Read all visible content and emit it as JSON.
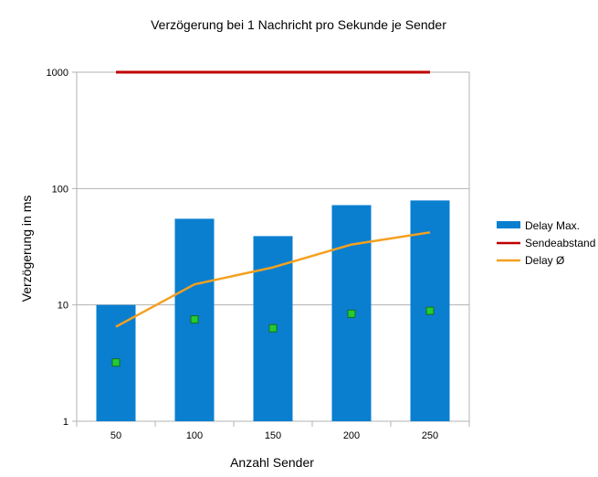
{
  "chart_data": {
    "type": "bar",
    "title": "Verzögerung bei 1 Nachricht pro Sekunde je Sender",
    "xlabel": "Anzahl Sender",
    "ylabel": "Verzögerung in ms",
    "y_scale": "log",
    "ylim": [
      1,
      1000
    ],
    "y_ticks": [
      "1",
      "10",
      "100",
      "1000"
    ],
    "categories": [
      "50",
      "100",
      "150",
      "200",
      "250"
    ],
    "grid": true,
    "legend_position": "right",
    "series": [
      {
        "name": "Delay Max.",
        "kind": "bar",
        "color": "#0a7fd0",
        "values": [
          10,
          55,
          39,
          72,
          79
        ]
      },
      {
        "name": "Sendeabstand",
        "kind": "line",
        "color": "#c00000",
        "values": [
          1000,
          1000,
          1000,
          1000,
          1000
        ]
      },
      {
        "name": "Delay Ø",
        "kind": "line",
        "color": "#f4a020",
        "values": [
          6.5,
          15,
          21,
          33,
          42
        ]
      },
      {
        "name": "",
        "kind": "scatter",
        "color": "#22cc33",
        "values": [
          3.2,
          7.5,
          6.3,
          8.4,
          8.9
        ]
      }
    ]
  }
}
